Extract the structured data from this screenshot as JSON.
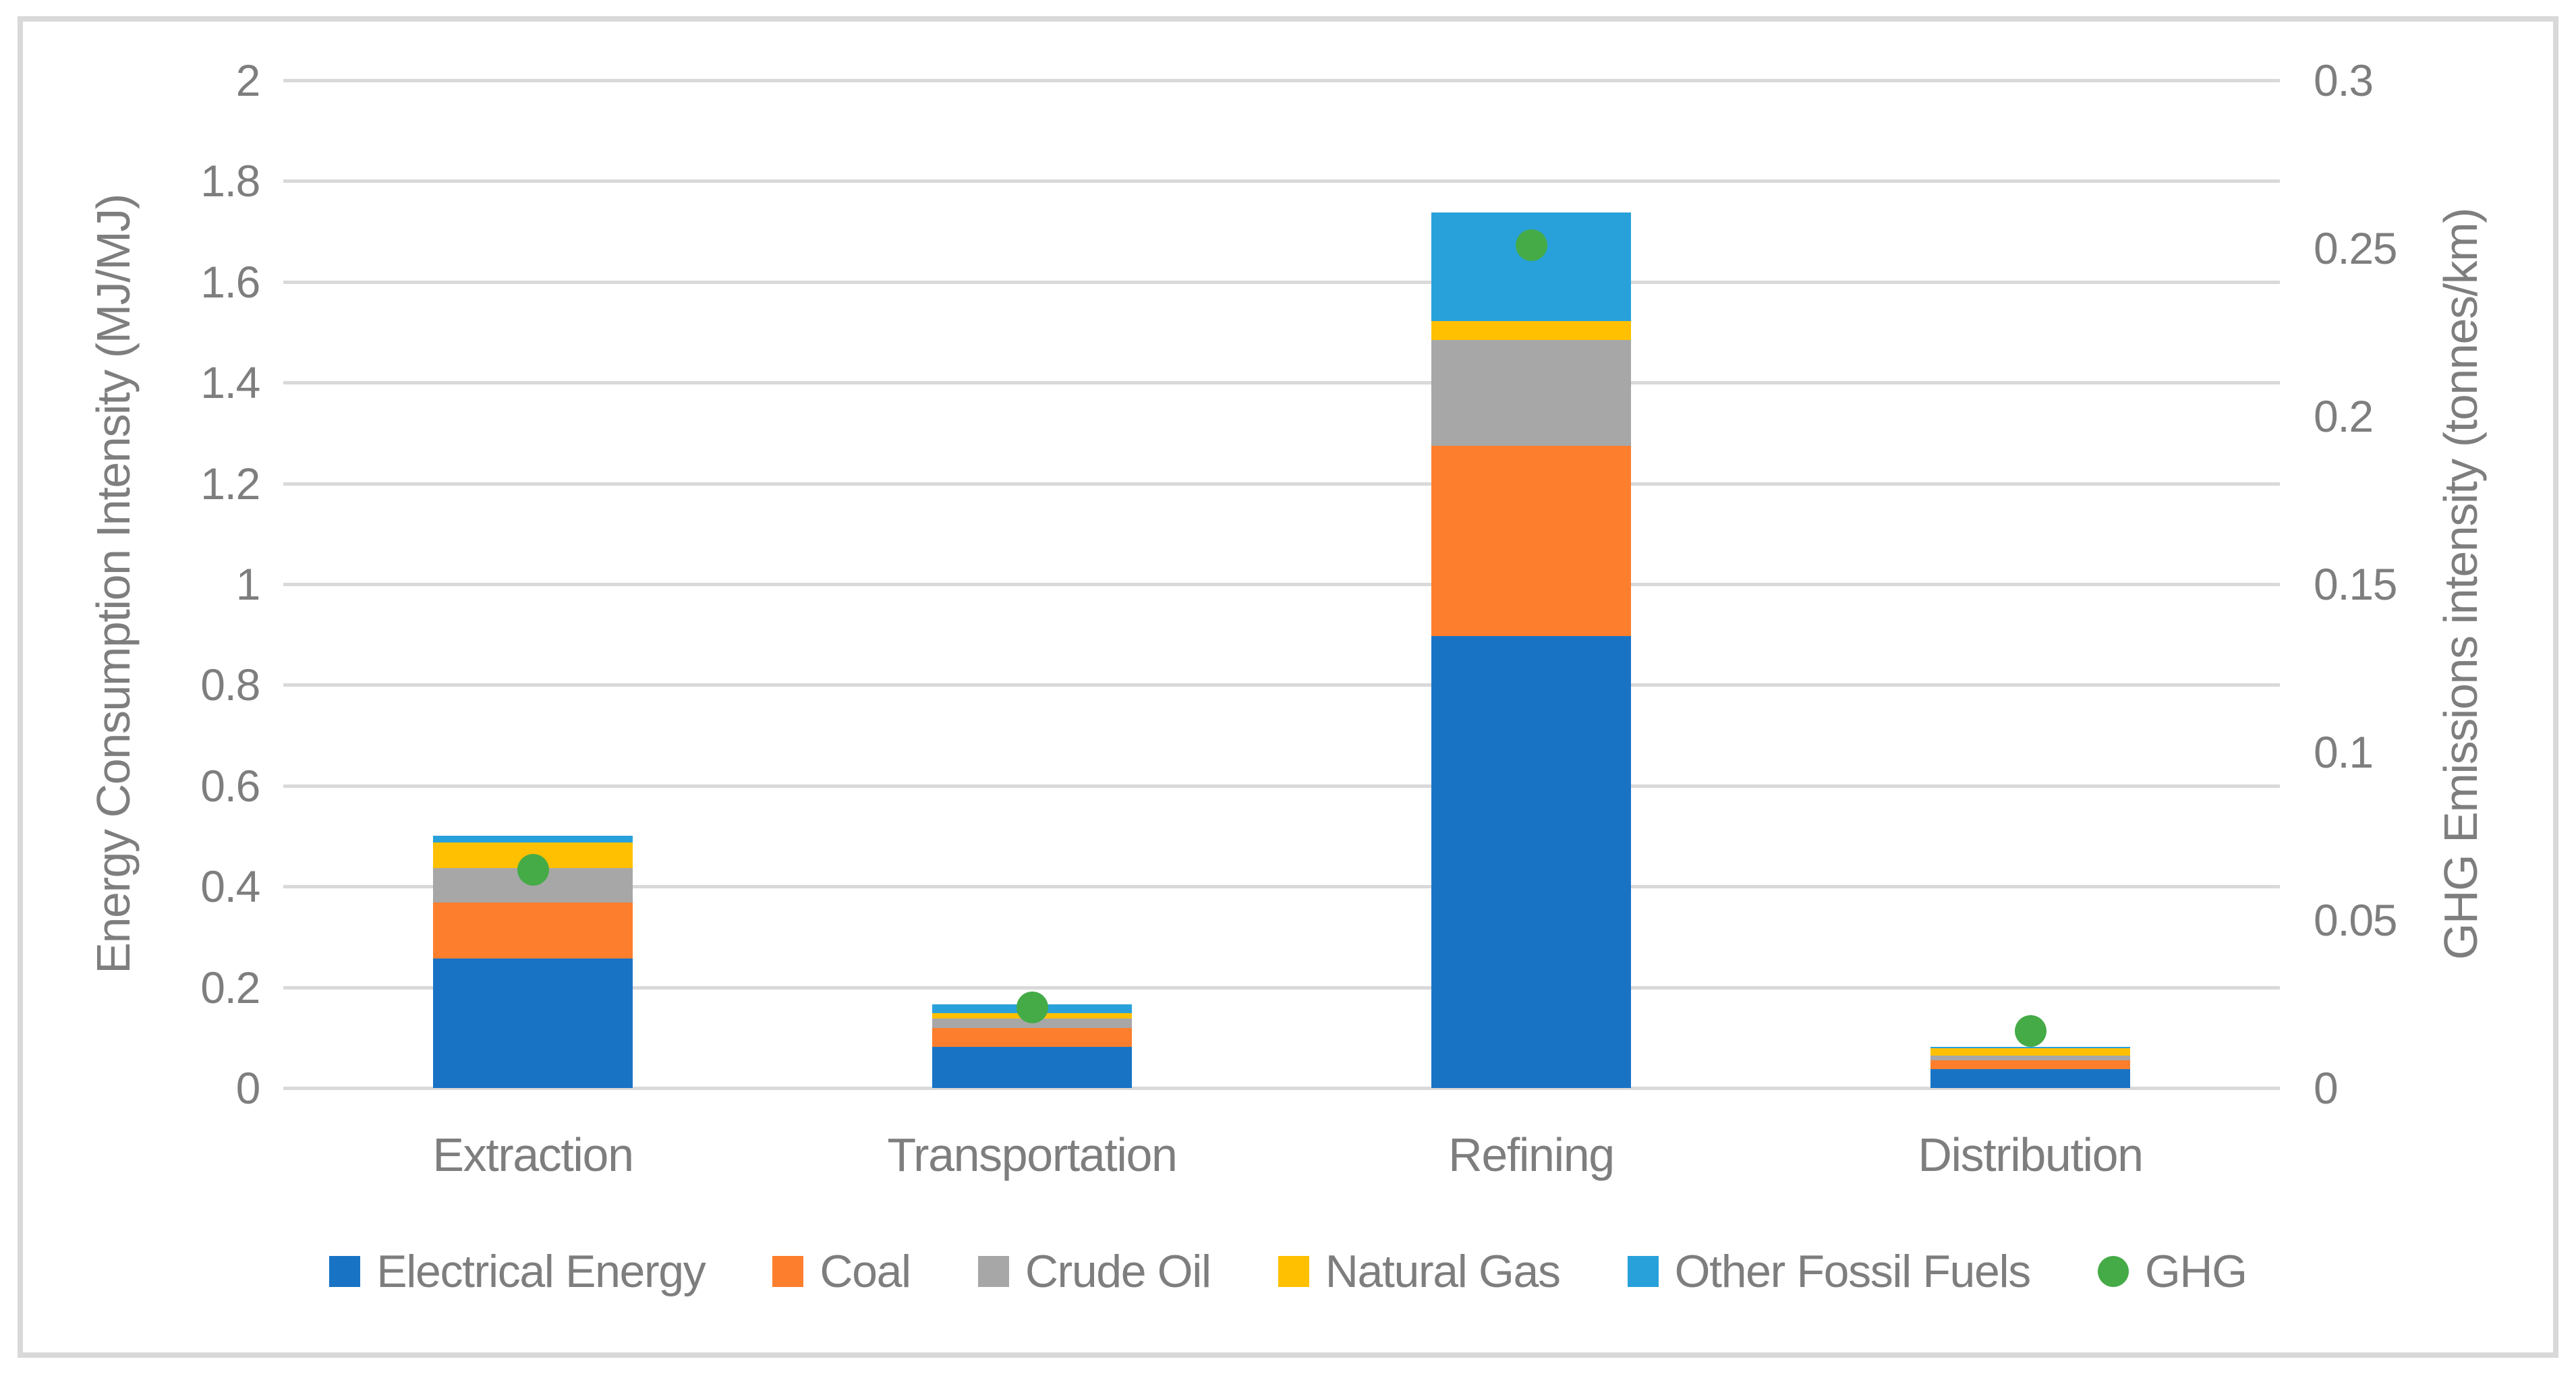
{
  "page": {
    "background": "#FFFFFF",
    "border_color": "#D9D9D9",
    "text_color": "#7E7E7E",
    "gridline_color": "#D9D9D9"
  },
  "chart_data": {
    "type": "bar",
    "subtype": "stacked-column with scatter overlay on secondary axis",
    "grid": true,
    "legend_position": "bottom",
    "categories": [
      "Extraction",
      "Transportation",
      "Refining",
      "Distribution"
    ],
    "series": [
      {
        "name": "Electrical Energy",
        "color": "#1973C5",
        "values": [
          0.257,
          0.081,
          0.897,
          0.038
        ]
      },
      {
        "name": "Coal",
        "color": "#FD7E2C",
        "values": [
          0.111,
          0.038,
          0.377,
          0.017
        ]
      },
      {
        "name": "Crude Oil",
        "color": "#A7A7A7",
        "values": [
          0.068,
          0.019,
          0.21,
          0.009
        ]
      },
      {
        "name": "Natural Gas",
        "color": "#FFC002",
        "values": [
          0.051,
          0.011,
          0.038,
          0.015
        ]
      },
      {
        "name": "Other Fossil Fuels",
        "color": "#28A1DB",
        "values": [
          0.014,
          0.017,
          0.215,
          0.003
        ]
      }
    ],
    "ghg_series": {
      "name": "GHG",
      "color": "#45AB47",
      "axis": "right",
      "values": [
        0.065,
        0.024,
        0.251,
        0.017
      ]
    },
    "left_axis": {
      "title": "Energy Consumption Intensity (MJ/MJ)",
      "min": 0,
      "max": 2,
      "step": 0.2,
      "tick_labels": [
        "2",
        "1.8",
        "1.6",
        "1.4",
        "1.2",
        "1",
        "0.8",
        "0.6",
        "0.4",
        "0.2",
        "0"
      ],
      "tick_values": [
        2,
        1.8,
        1.6,
        1.4,
        1.2,
        1,
        0.8,
        0.6,
        0.4,
        0.2,
        0
      ]
    },
    "right_axis": {
      "title": "GHG Emissions intensity  (tonnes/km)",
      "min": 0,
      "max": 0.3,
      "step": 0.05,
      "tick_labels": [
        "0.3",
        "0.25",
        "0.2",
        "0.15",
        "0.1",
        "0.05",
        "0"
      ],
      "tick_values": [
        0.3,
        0.25,
        0.2,
        0.15,
        0.1,
        0.05,
        0
      ]
    }
  }
}
